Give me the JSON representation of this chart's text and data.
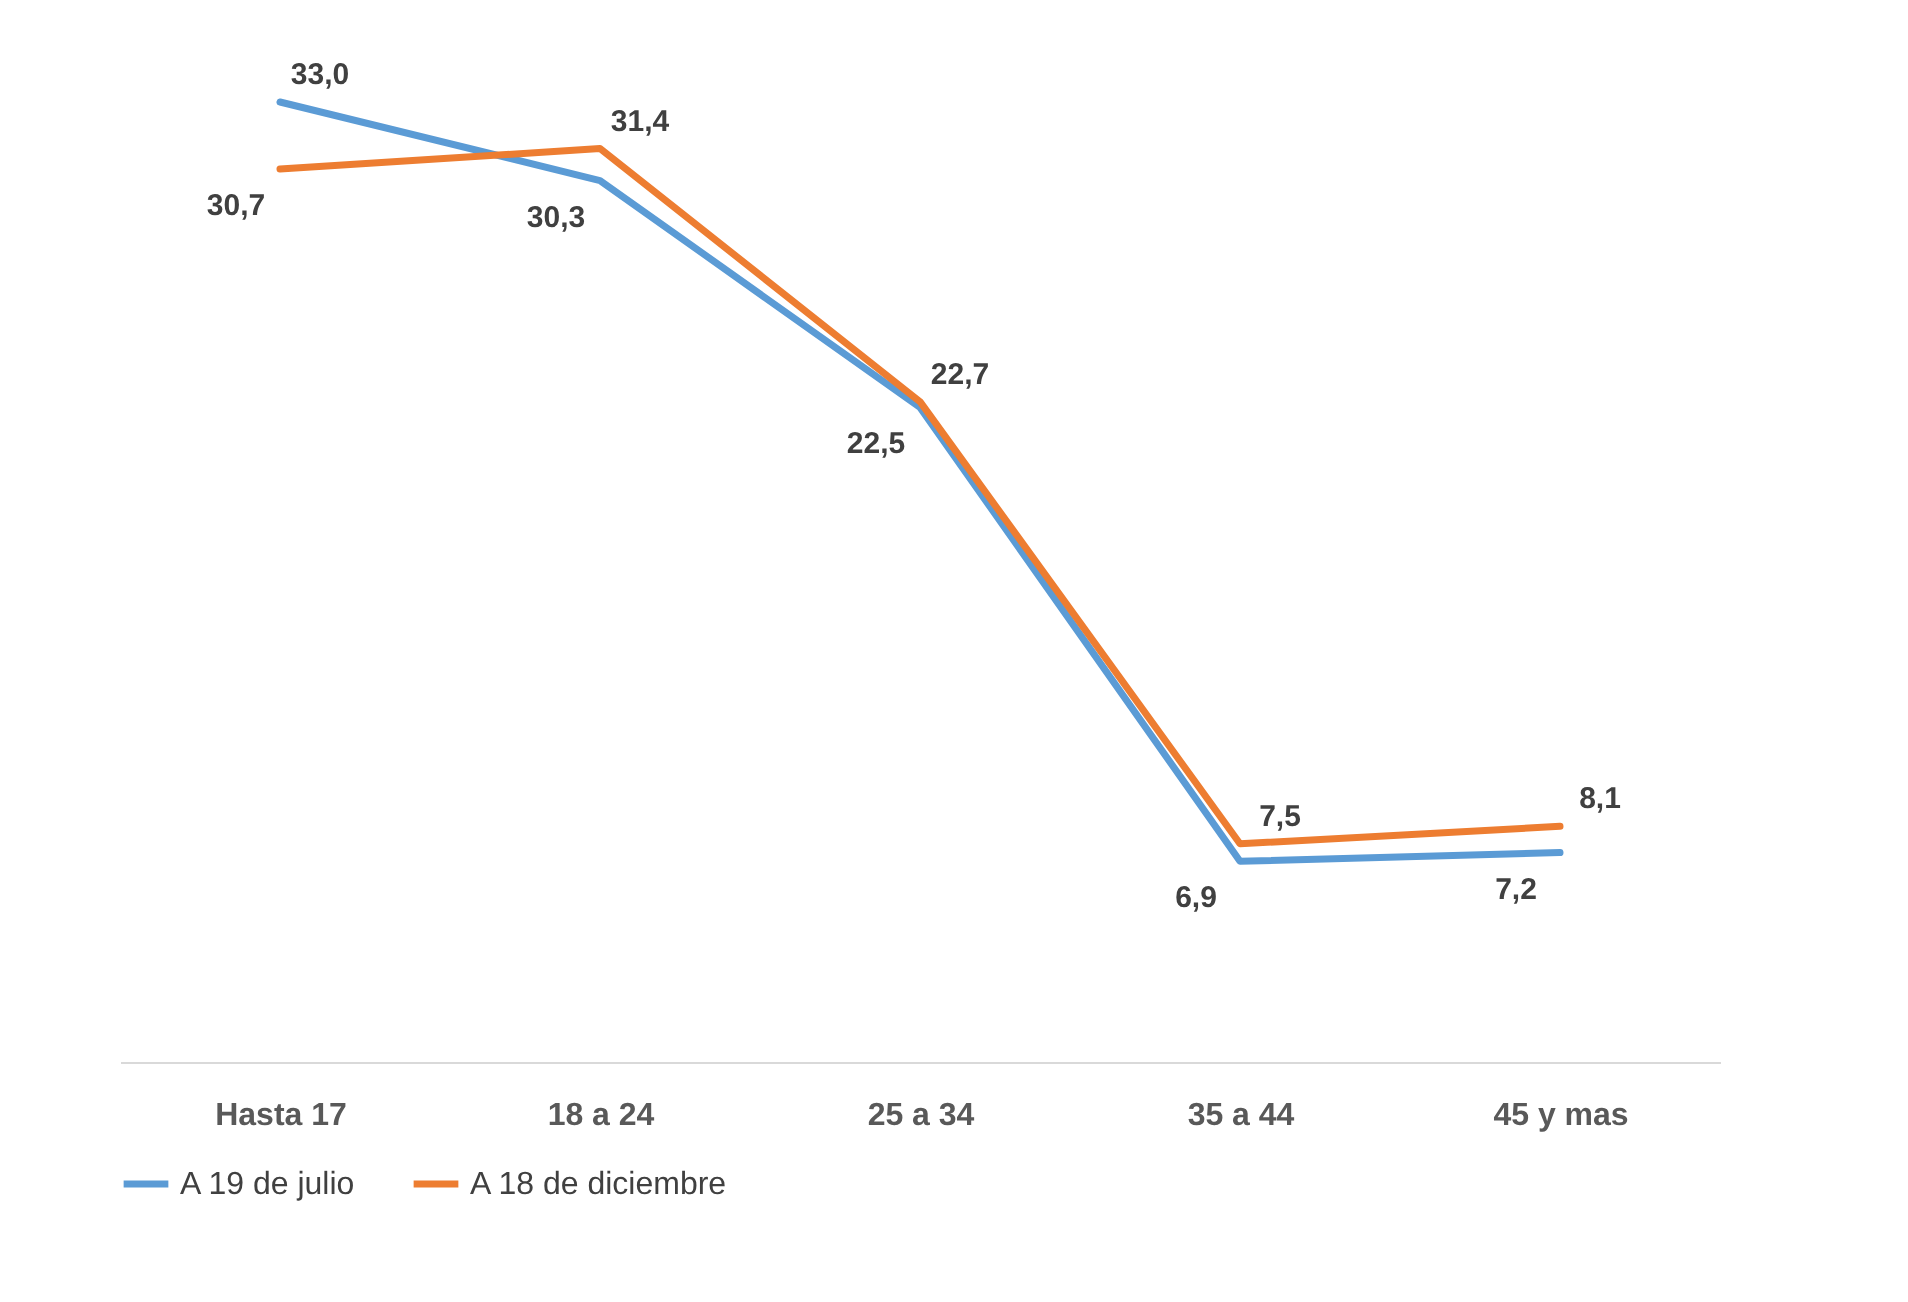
{
  "chart_data": {
    "type": "line",
    "categories": [
      "Hasta 17",
      "18 a 24",
      "25 a 34",
      "35 a 44",
      "45 y mas"
    ],
    "series": [
      {
        "name": "A 19 de julio",
        "color": "#5b9bd5",
        "values": [
          33.0,
          30.3,
          22.5,
          6.9,
          7.2
        ],
        "value_labels": [
          "33,0",
          "30,3",
          "22,5",
          "6,9",
          "7,2"
        ]
      },
      {
        "name": "A 18 de diciembre",
        "color": "#ed7d31",
        "values": [
          30.7,
          31.4,
          22.7,
          7.5,
          8.1
        ],
        "value_labels": [
          "30,7",
          "31,4",
          "22,7",
          "7,5",
          "8,1"
        ]
      }
    ],
    "legend": "bottom",
    "grid": false,
    "tick_labels": "x",
    "marker": "none",
    "line_style": "solid"
  }
}
